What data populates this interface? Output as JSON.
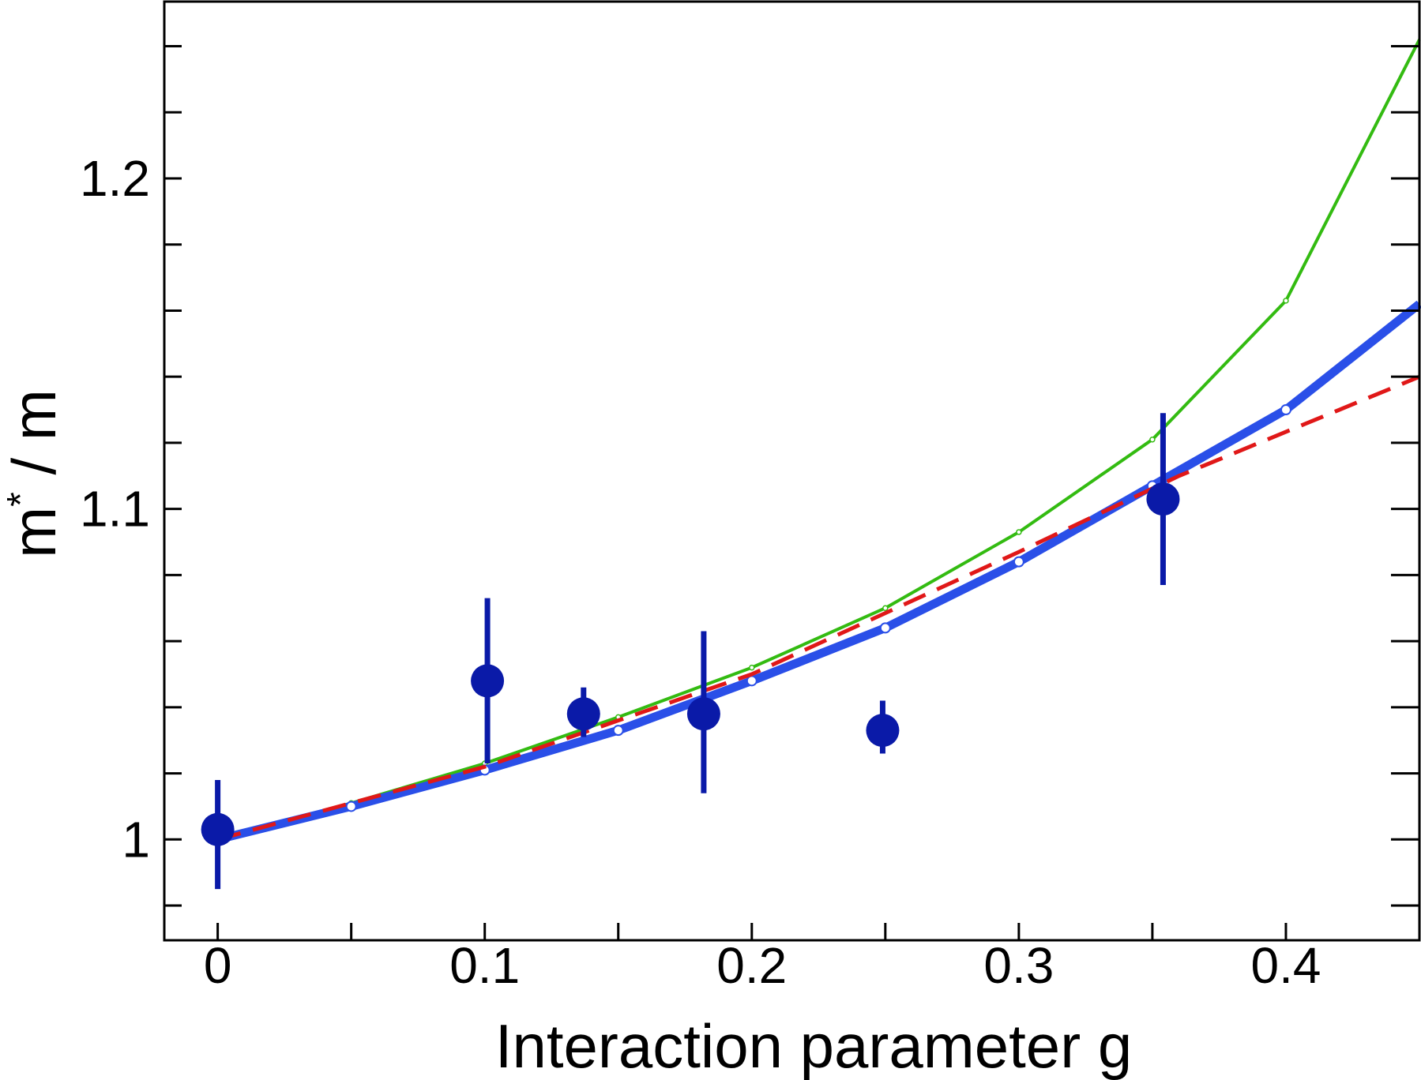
{
  "chart_data": {
    "type": "line",
    "title": "",
    "xlabel": "Interaction parameter g",
    "ylabel_main": "m",
    "ylabel_sup": "*",
    "ylabel_rest": " / m",
    "xlim": [
      -0.02,
      0.45
    ],
    "ylim": [
      0.9695,
      1.2535
    ],
    "x_ticks": [
      {
        "value": 0,
        "label": "0"
      },
      {
        "value": 0.1,
        "label": "0.1"
      },
      {
        "value": 0.2,
        "label": "0.2"
      },
      {
        "value": 0.3,
        "label": "0.3"
      },
      {
        "value": 0.4,
        "label": "0.4"
      }
    ],
    "x_minor_ticks": [
      0.05,
      0.15,
      0.25,
      0.35
    ],
    "y_ticks": [
      {
        "value": 1.0,
        "label": "1"
      },
      {
        "value": 1.1,
        "label": "1.1"
      },
      {
        "value": 1.2,
        "label": "1.2"
      }
    ],
    "y_minor_ticks": [
      0.98,
      1.02,
      1.04,
      1.06,
      1.08,
      1.12,
      1.14,
      1.16,
      1.18,
      1.22,
      1.24
    ],
    "grid": false,
    "series": [
      {
        "kind": "line",
        "color": "#33bb11",
        "dashed": false,
        "x": [
          0,
          0.05,
          0.1,
          0.15,
          0.2,
          0.25,
          0.3,
          0.35,
          0.4,
          0.45
        ],
        "y": [
          1.0,
          1.011,
          1.023,
          1.037,
          1.052,
          1.07,
          1.093,
          1.121,
          1.163,
          1.242
        ]
      },
      {
        "kind": "line",
        "color": "#2a4fe8",
        "dashed": false,
        "x": [
          0,
          0.05,
          0.1,
          0.15,
          0.2,
          0.25,
          0.3,
          0.35,
          0.4,
          0.45
        ],
        "y": [
          1.0,
          1.01,
          1.021,
          1.033,
          1.048,
          1.064,
          1.084,
          1.107,
          1.13,
          1.162
        ]
      },
      {
        "kind": "line",
        "color": "#e01818",
        "dashed": true,
        "x": [
          0,
          0.1,
          0.2,
          0.3,
          0.36,
          0.45
        ],
        "y": [
          1.0,
          1.022,
          1.05,
          1.087,
          1.11,
          1.14
        ]
      },
      {
        "kind": "scatter",
        "color": "#0a1aa8",
        "points": [
          {
            "x": 0.0,
            "y": 1.003,
            "err_low": 0.985,
            "err_high": 1.018
          },
          {
            "x": 0.101,
            "y": 1.048,
            "err_low": 1.023,
            "err_high": 1.073
          },
          {
            "x": 0.137,
            "y": 1.038,
            "err_low": 1.031,
            "err_high": 1.046
          },
          {
            "x": 0.182,
            "y": 1.038,
            "err_low": 1.014,
            "err_high": 1.063
          },
          {
            "x": 0.249,
            "y": 1.033,
            "err_low": 1.026,
            "err_high": 1.042
          },
          {
            "x": 0.354,
            "y": 1.103,
            "err_low": 1.077,
            "err_high": 1.129
          }
        ]
      }
    ]
  }
}
